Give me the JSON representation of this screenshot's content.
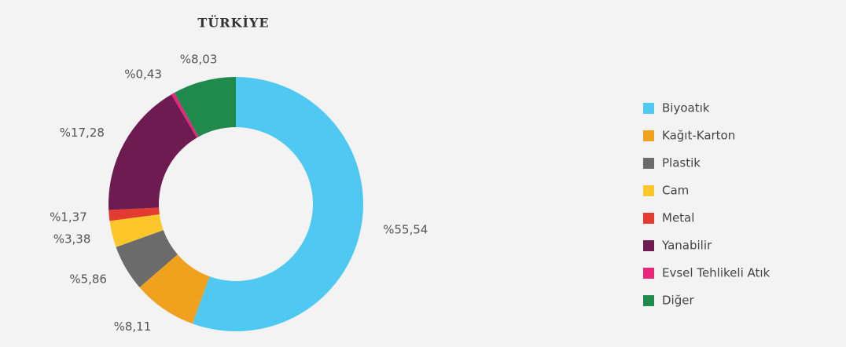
{
  "chart_data": {
    "type": "donut",
    "title": "TÜRKİYE",
    "categories": [
      "Biyoatık",
      "Kağıt-Karton",
      "Plastik",
      "Cam",
      "Metal",
      "Yanabilir",
      "Evsel Tehlikeli Atık",
      "Diğer"
    ],
    "values": [
      55.54,
      8.11,
      5.86,
      3.38,
      1.37,
      17.28,
      0.43,
      8.03
    ],
    "value_labels": [
      "%55,54",
      "%8,11",
      "%5,86",
      "%3,38",
      "%1,37",
      "%17,28",
      "%0,43",
      "%8,03"
    ],
    "colors": [
      "#4fc8f2",
      "#f0a11e",
      "#6b6b6b",
      "#fdc62b",
      "#e33b30",
      "#6d1b50",
      "#e8247b",
      "#1f8a4b"
    ],
    "legend": "right"
  }
}
